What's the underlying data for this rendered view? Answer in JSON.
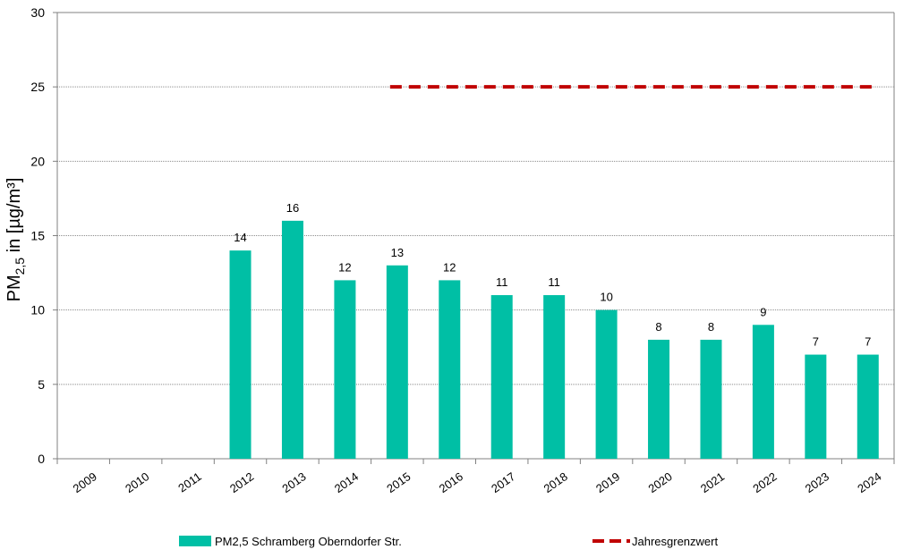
{
  "chart_data": {
    "type": "bar",
    "categories": [
      "2009",
      "2010",
      "2011",
      "2012",
      "2013",
      "2014",
      "2015",
      "2016",
      "2017",
      "2018",
      "2019",
      "2020",
      "2021",
      "2022",
      "2023",
      "2024"
    ],
    "series": [
      {
        "name": "PM2,5 Schramberg Oberndorfer Str.",
        "type": "bar",
        "color": "#00bfa5",
        "values": [
          null,
          null,
          null,
          14,
          16,
          12,
          13,
          12,
          11,
          11,
          10,
          8,
          8,
          9,
          7,
          7
        ]
      },
      {
        "name": "Jahresgrenzwert",
        "type": "line",
        "style": "dashed",
        "color": "#c00000",
        "values": [
          null,
          null,
          null,
          null,
          null,
          null,
          25,
          25,
          25,
          25,
          25,
          25,
          25,
          25,
          25,
          25
        ]
      }
    ],
    "ylabel": {
      "base": "PM",
      "sub": "2,5",
      "rest": " in [µg/m³]"
    },
    "yticks": [
      "0",
      "5",
      "10",
      "15",
      "20",
      "25",
      "30"
    ],
    "ylim": [
      0,
      30
    ],
    "grid": true,
    "legend": "bottom"
  }
}
